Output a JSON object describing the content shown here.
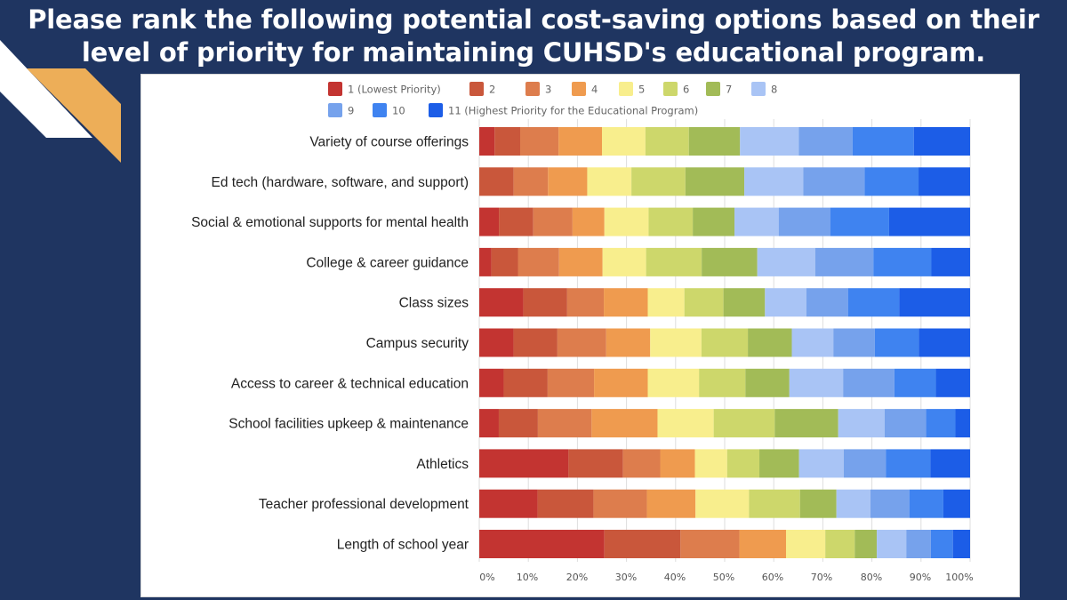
{
  "slide": {
    "title_line1": "Please rank the following potential cost-saving options based on their",
    "title_line2": "level of priority for maintaining CUHSD's educational program."
  },
  "colors": {
    "background": "#1f3561",
    "accent_gold": "#edae58",
    "accent_white": "#ffffff",
    "series": [
      "#c33431",
      "#c9573b",
      "#dd7d4d",
      "#ef9b4f",
      "#f8ee8d",
      "#cdd76b",
      "#a2bb57",
      "#a9c4f5",
      "#76a2ec",
      "#3f83f0",
      "#1c5de7"
    ]
  },
  "chart_data": {
    "type": "bar",
    "orientation": "horizontal",
    "stacked": "percent",
    "categories": [
      "Variety of course offerings",
      "Ed tech (hardware, software, and support)",
      "Social & emotional supports for mental health",
      "College & career guidance",
      "Class sizes",
      "Campus security",
      "Access to career & technical education",
      "School facilities upkeep & maintenance",
      "Athletics",
      "Teacher professional development",
      "Length of school year"
    ],
    "series": [
      {
        "name": "1 (Lowest Priority)",
        "values": [
          3,
          0,
          4,
          2.5,
          9,
          7,
          5,
          4,
          18,
          12,
          25.5
        ]
      },
      {
        "name": "2",
        "values": [
          5,
          7,
          7,
          5.5,
          9,
          9,
          9,
          8,
          11,
          11.5,
          15.5
        ]
      },
      {
        "name": "3",
        "values": [
          7.5,
          7,
          8,
          8.5,
          7.5,
          10,
          9.5,
          11,
          7.5,
          11,
          12
        ]
      },
      {
        "name": "4",
        "values": [
          8.5,
          8,
          6.5,
          9,
          9,
          9,
          11,
          13.5,
          7,
          10,
          9.5
        ]
      },
      {
        "name": "5",
        "values": [
          8.5,
          9,
          9,
          9,
          7.5,
          10.5,
          10.5,
          11.5,
          6.5,
          11,
          8
        ]
      },
      {
        "name": "6",
        "values": [
          8.5,
          11,
          9,
          11.5,
          8,
          9.5,
          9.5,
          12.5,
          6.5,
          10.5,
          6
        ]
      },
      {
        "name": "7",
        "values": [
          10,
          12,
          8.5,
          11.5,
          8.5,
          9,
          9,
          13,
          8,
          7.5,
          4.5
        ]
      },
      {
        "name": "8",
        "values": [
          11.5,
          12,
          9,
          12,
          8.5,
          8.5,
          11,
          9.5,
          9,
          7,
          6
        ]
      },
      {
        "name": "9",
        "values": [
          10.5,
          12.5,
          10.5,
          12,
          8.5,
          8.5,
          10.5,
          8.5,
          8.5,
          8,
          5
        ]
      },
      {
        "name": "10",
        "values": [
          12,
          11,
          12,
          12,
          10.5,
          9,
          8.5,
          6,
          9,
          7,
          4.5
        ]
      },
      {
        "name": "11 (Highest Priority for the Educational Program)",
        "values": [
          11,
          10.5,
          16.5,
          8,
          14.5,
          10.5,
          7,
          3,
          8,
          5.5,
          3.5
        ]
      }
    ],
    "x_ticks": [
      "0%",
      "10%",
      "20%",
      "30%",
      "40%",
      "50%",
      "60%",
      "70%",
      "80%",
      "90%",
      "100%"
    ],
    "xlim": [
      0,
      100
    ],
    "grid": true,
    "legend_position": "top"
  }
}
